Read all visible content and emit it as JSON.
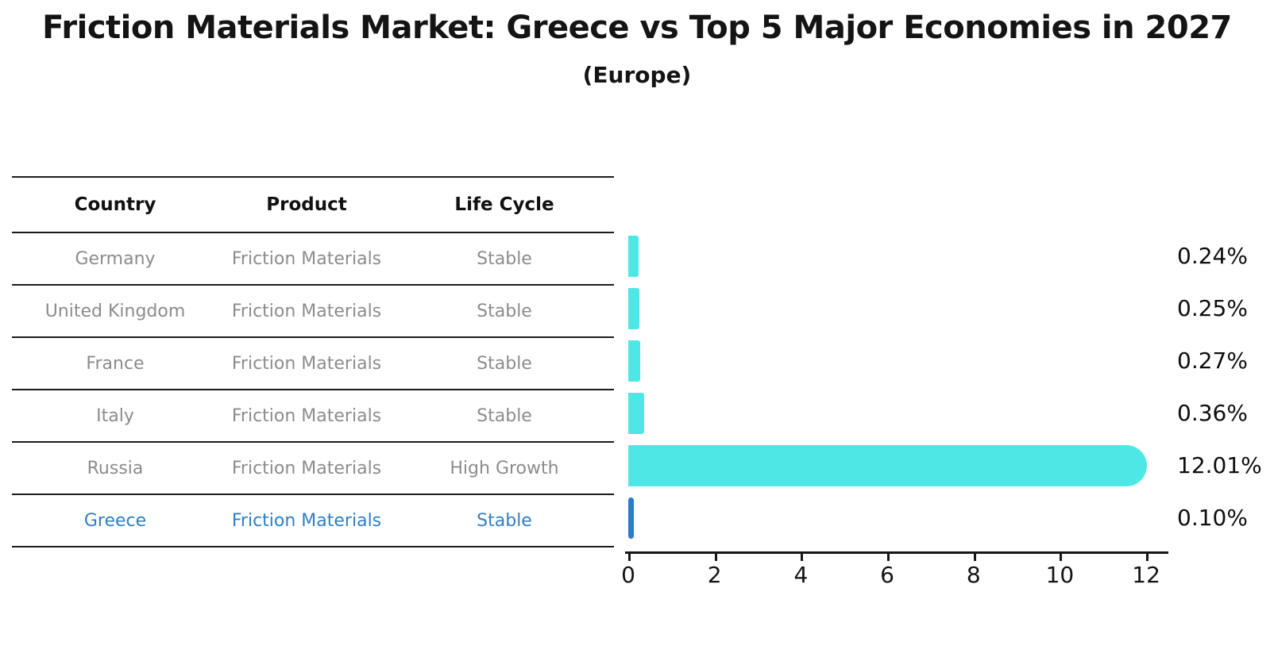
{
  "title": "Friction Materials Market: Greece vs Top 5 Major Economies in 2027",
  "subtitle": "(Europe)",
  "table": {
    "headers": [
      "Country",
      "Product",
      "Life Cycle"
    ],
    "rows": [
      {
        "country": "Germany",
        "product": "Friction Materials",
        "life_cycle": "Stable"
      },
      {
        "country": "United Kingdom",
        "product": "Friction Materials",
        "life_cycle": "Stable"
      },
      {
        "country": "France",
        "product": "Friction Materials",
        "life_cycle": "Stable"
      },
      {
        "country": "Italy",
        "product": "Friction Materials",
        "life_cycle": "Stable"
      },
      {
        "country": "Russia",
        "product": "Friction Materials",
        "life_cycle": "High Growth"
      },
      {
        "country": "Greece",
        "product": "Friction Materials",
        "life_cycle": "Stable"
      }
    ]
  },
  "chart_data": {
    "type": "bar",
    "orientation": "horizontal",
    "title": "Friction Materials Market: Greece vs Top 5 Major Economies in 2027",
    "subtitle": "(Europe)",
    "categories": [
      "Germany",
      "United Kingdom",
      "France",
      "Italy",
      "Russia",
      "Greece"
    ],
    "values": [
      0.24,
      0.25,
      0.27,
      0.36,
      12.01,
      0.1
    ],
    "value_labels": [
      "0.24%",
      "0.25%",
      "0.27%",
      "0.36%",
      "12.01%",
      "0.10%"
    ],
    "x_ticks": [
      0,
      2,
      4,
      6,
      8,
      10,
      12
    ],
    "xlim": [
      0,
      12.55
    ],
    "grid": false,
    "legend": "none",
    "bar_color": "#4de8e6",
    "highlight_color": "#2b7bd1",
    "highlight_index": 5,
    "highlight_text_color": "#2e7fc6"
  }
}
